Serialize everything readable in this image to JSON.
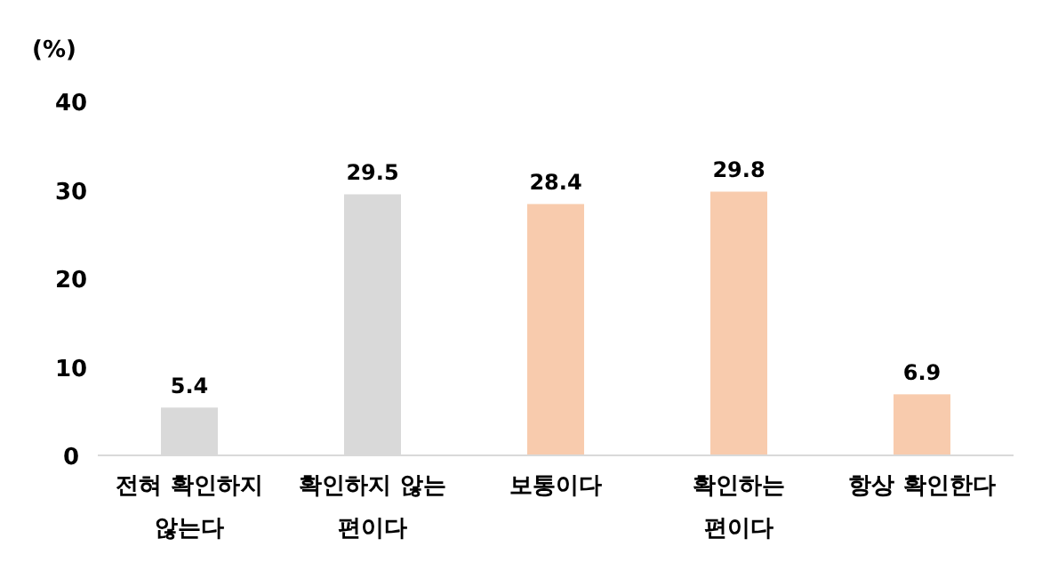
{
  "chart_data": {
    "type": "bar",
    "ylabel": "(%)",
    "categories": [
      "전혀 확인하지 않는다",
      "확인하지 않는 편이다",
      "보통이다",
      "확인하는 편이다",
      "항상 확인한다"
    ],
    "values": [
      5.4,
      29.5,
      28.4,
      29.8,
      6.9
    ],
    "colors": [
      "#d9d9d9",
      "#d9d9d9",
      "#f8cbad",
      "#f8cbad",
      "#f8cbad"
    ],
    "ylim": [
      0,
      40
    ],
    "yticks": [
      0,
      10,
      20,
      30,
      40
    ],
    "data_labels": true,
    "grid": false
  }
}
